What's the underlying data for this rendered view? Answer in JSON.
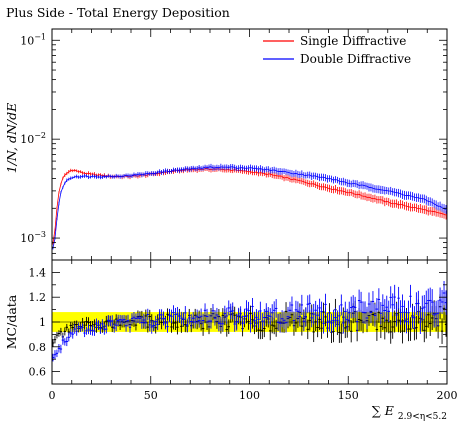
{
  "title": "Plus Side - Total Energy Deposition",
  "chart_data": [
    {
      "type": "line",
      "panel": "main",
      "title": "Plus Side - Total Energy Deposition",
      "ylabel": "1/N, dN/dE",
      "yscale": "log",
      "xlim": [
        0,
        200
      ],
      "ylim": [
        0.0006,
        0.13
      ],
      "ytick_labels": [
        "10^-3",
        "10^-2",
        "10^-1"
      ],
      "legend_position": "top-right",
      "series": [
        {
          "name": "Single Diffractive",
          "color": "#ff0000",
          "style": "points with error bars",
          "x": [
            1,
            2,
            3,
            4,
            5,
            6,
            8,
            10,
            12,
            15,
            20,
            30,
            40,
            50,
            60,
            70,
            80,
            90,
            100,
            110,
            120,
            130,
            140,
            150,
            160,
            170,
            180,
            190,
            200
          ],
          "y": [
            0.0009,
            0.0015,
            0.0025,
            0.0033,
            0.0038,
            0.0042,
            0.0046,
            0.0049,
            0.0048,
            0.0046,
            0.0044,
            0.0042,
            0.0042,
            0.0044,
            0.0047,
            0.0049,
            0.005,
            0.0049,
            0.0047,
            0.0044,
            0.004,
            0.0036,
            0.0032,
            0.0029,
            0.0026,
            0.0023,
            0.0021,
            0.0019,
            0.0017
          ]
        },
        {
          "name": "Double Diffractive",
          "color": "#0000ff",
          "style": "points with error bars",
          "x": [
            1,
            2,
            3,
            4,
            5,
            6,
            8,
            10,
            12,
            15,
            20,
            30,
            40,
            50,
            60,
            70,
            80,
            90,
            100,
            110,
            120,
            130,
            140,
            150,
            160,
            170,
            180,
            190,
            200
          ],
          "y": [
            0.0008,
            0.0012,
            0.0019,
            0.0026,
            0.0031,
            0.0035,
            0.0039,
            0.0041,
            0.0042,
            0.0042,
            0.0042,
            0.0042,
            0.0043,
            0.0045,
            0.0048,
            0.005,
            0.0052,
            0.0052,
            0.0051,
            0.0049,
            0.0046,
            0.0043,
            0.004,
            0.0036,
            0.0033,
            0.003,
            0.0027,
            0.0024,
            0.0019
          ]
        }
      ]
    },
    {
      "type": "line",
      "panel": "ratio",
      "xlabel": "∑ E_{2.9<η<5.2}",
      "ylabel": "MC/data",
      "xlim": [
        0,
        200
      ],
      "ylim": [
        0.5,
        1.5
      ],
      "xticks": [
        0,
        50,
        100,
        150,
        200
      ],
      "yticks": [
        0.6,
        0.8,
        1,
        1.2,
        1.4
      ],
      "band": {
        "name": "data uncertainty",
        "color": "#ffff00",
        "lower": 0.92,
        "upper": 1.08
      },
      "reference_line": 1,
      "series": [
        {
          "name": "Single Diffractive / data",
          "color": "#000000",
          "x": [
            1,
            3,
            5,
            8,
            12,
            20,
            30,
            40,
            50,
            60,
            70,
            80,
            90,
            100,
            110,
            120,
            130,
            140,
            150,
            160,
            170,
            180,
            190,
            200
          ],
          "y": [
            0.85,
            0.88,
            0.9,
            0.93,
            0.96,
            0.98,
            0.99,
            1.0,
            1.0,
            1.01,
            1.0,
            1.0,
            1.01,
            1.0,
            1.0,
            1.01,
            1.0,
            1.01,
            1.0,
            1.01,
            1.01,
            1.02,
            1.02,
            1.03
          ]
        },
        {
          "name": "Double Diffractive / data",
          "color": "#0000ff",
          "x": [
            1,
            3,
            5,
            8,
            12,
            20,
            30,
            40,
            50,
            60,
            70,
            80,
            90,
            100,
            110,
            120,
            130,
            140,
            150,
            160,
            170,
            180,
            190,
            200
          ],
          "y": [
            0.72,
            0.78,
            0.82,
            0.87,
            0.92,
            0.96,
            0.98,
            1.0,
            1.01,
            1.02,
            1.03,
            1.04,
            1.05,
            1.06,
            1.07,
            1.07,
            1.08,
            1.08,
            1.09,
            1.1,
            1.1,
            1.11,
            1.11,
            1.12
          ]
        }
      ]
    }
  ]
}
